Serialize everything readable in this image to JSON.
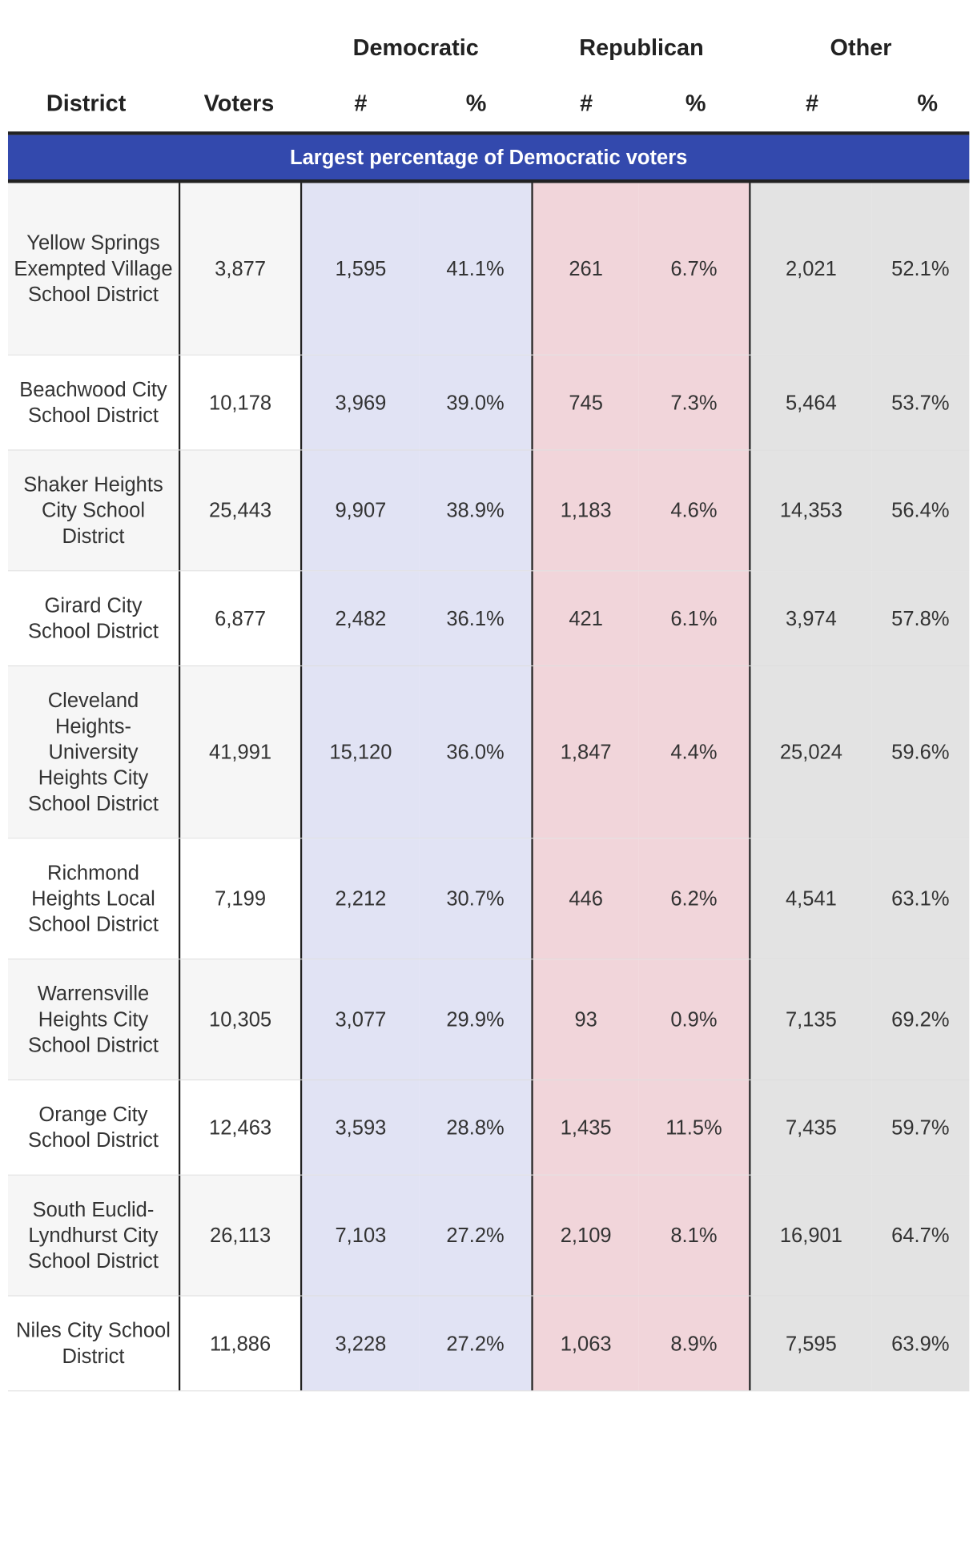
{
  "table": {
    "group_headers": {
      "democratic": "Democratic",
      "republican": "Republican",
      "other": "Other"
    },
    "column_headers": {
      "district": "District",
      "voters": "Voters",
      "dem_num": "#",
      "dem_pct": "%",
      "rep_num": "#",
      "rep_pct": "%",
      "oth_num": "#",
      "oth_pct": "%"
    },
    "banner": "Largest percentage of Democratic voters",
    "colors": {
      "banner": "#3349ad",
      "democratic": "#e1e3f4",
      "republican": "#f1d5da",
      "other": "#e3e3e3"
    },
    "rows": [
      {
        "district": "Yellow Springs Exempted Village School District",
        "voters": "3,877",
        "dem_num": "1,595",
        "dem_pct": "41.1%",
        "rep_num": "261",
        "rep_pct": "6.7%",
        "oth_num": "2,021",
        "oth_pct": "52.1%"
      },
      {
        "district": "Beachwood City School District",
        "voters": "10,178",
        "dem_num": "3,969",
        "dem_pct": "39.0%",
        "rep_num": "745",
        "rep_pct": "7.3%",
        "oth_num": "5,464",
        "oth_pct": "53.7%"
      },
      {
        "district": "Shaker Heights City School District",
        "voters": "25,443",
        "dem_num": "9,907",
        "dem_pct": "38.9%",
        "rep_num": "1,183",
        "rep_pct": "4.6%",
        "oth_num": "14,353",
        "oth_pct": "56.4%"
      },
      {
        "district": "Girard City School District",
        "voters": "6,877",
        "dem_num": "2,482",
        "dem_pct": "36.1%",
        "rep_num": "421",
        "rep_pct": "6.1%",
        "oth_num": "3,974",
        "oth_pct": "57.8%"
      },
      {
        "district": "Cleveland Heights-University Heights City School District",
        "voters": "41,991",
        "dem_num": "15,120",
        "dem_pct": "36.0%",
        "rep_num": "1,847",
        "rep_pct": "4.4%",
        "oth_num": "25,024",
        "oth_pct": "59.6%"
      },
      {
        "district": "Richmond Heights Local School District",
        "voters": "7,199",
        "dem_num": "2,212",
        "dem_pct": "30.7%",
        "rep_num": "446",
        "rep_pct": "6.2%",
        "oth_num": "4,541",
        "oth_pct": "63.1%"
      },
      {
        "district": "Warrensville Heights City School District",
        "voters": "10,305",
        "dem_num": "3,077",
        "dem_pct": "29.9%",
        "rep_num": "93",
        "rep_pct": "0.9%",
        "oth_num": "7,135",
        "oth_pct": "69.2%"
      },
      {
        "district": "Orange City School District",
        "voters": "12,463",
        "dem_num": "3,593",
        "dem_pct": "28.8%",
        "rep_num": "1,435",
        "rep_pct": "11.5%",
        "oth_num": "7,435",
        "oth_pct": "59.7%"
      },
      {
        "district": "South Euclid-Lyndhurst City School District",
        "voters": "26,113",
        "dem_num": "7,103",
        "dem_pct": "27.2%",
        "rep_num": "2,109",
        "rep_pct": "8.1%",
        "oth_num": "16,901",
        "oth_pct": "64.7%"
      },
      {
        "district": "Niles City School District",
        "voters": "11,886",
        "dem_num": "3,228",
        "dem_pct": "27.2%",
        "rep_num": "1,063",
        "rep_pct": "8.9%",
        "oth_num": "7,595",
        "oth_pct": "63.9%"
      }
    ]
  }
}
